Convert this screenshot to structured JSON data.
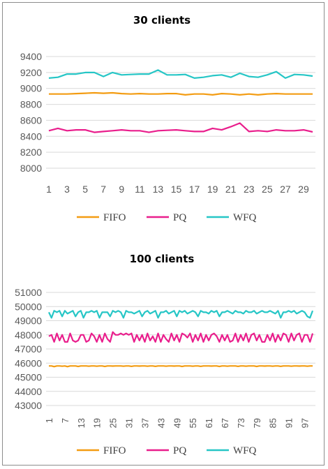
{
  "chart_data": [
    {
      "type": "line",
      "title": "30 clients",
      "ylim": [
        8000,
        9400
      ],
      "yticks": [
        "9400",
        "9200",
        "9000",
        "8800",
        "8600",
        "8400",
        "8200",
        "8000"
      ],
      "x": [
        1,
        2,
        3,
        4,
        5,
        6,
        7,
        8,
        9,
        10,
        11,
        12,
        13,
        14,
        15,
        16,
        17,
        18,
        19,
        20,
        21,
        22,
        23,
        24,
        25,
        26,
        27,
        28,
        29,
        30
      ],
      "xtick_labels": [
        "1",
        "3",
        "5",
        "7",
        "9",
        "11",
        "13",
        "15",
        "17",
        "19",
        "21",
        "23",
        "25",
        "27",
        "29"
      ],
      "grid": true,
      "legend": "bottom",
      "series": [
        {
          "name": "FIFO",
          "color": "#f39c12",
          "values": [
            8930,
            8930,
            8930,
            8935,
            8940,
            8945,
            8940,
            8945,
            8935,
            8930,
            8935,
            8930,
            8930,
            8935,
            8935,
            8920,
            8930,
            8930,
            8920,
            8935,
            8930,
            8920,
            8930,
            8920,
            8930,
            8935,
            8930,
            8930,
            8930,
            8930
          ]
        },
        {
          "name": "PQ",
          "color": "#e91e8c",
          "values": [
            8470,
            8500,
            8470,
            8480,
            8480,
            8450,
            8460,
            8470,
            8480,
            8470,
            8470,
            8450,
            8470,
            8475,
            8480,
            8470,
            8460,
            8460,
            8500,
            8480,
            8520,
            8565,
            8460,
            8470,
            8460,
            8480,
            8470,
            8470,
            8480,
            8455
          ]
        },
        {
          "name": "WFQ",
          "color": "#26c6c6",
          "values": [
            9130,
            9140,
            9180,
            9180,
            9200,
            9200,
            9150,
            9200,
            9170,
            9175,
            9180,
            9180,
            9230,
            9170,
            9170,
            9175,
            9130,
            9140,
            9160,
            9170,
            9140,
            9190,
            9150,
            9140,
            9170,
            9210,
            9130,
            9175,
            9170,
            9155
          ]
        }
      ]
    },
    {
      "type": "line",
      "title": "100 clients",
      "ylim": [
        43000,
        51000
      ],
      "yticks": [
        "51000",
        "50000",
        "49000",
        "48000",
        "47000",
        "46000",
        "45000",
        "44000",
        "43000"
      ],
      "xtick_labels": [
        "1",
        "7",
        "13",
        "19",
        "25",
        "31",
        "37",
        "43",
        "49",
        "55",
        "61",
        "67",
        "73",
        "79",
        "85",
        "91",
        "97"
      ],
      "grid": true,
      "legend": "bottom",
      "series": [
        {
          "name": "FIFO",
          "color": "#f39c12",
          "values": [
            45800,
            45800,
            45750,
            45800,
            45800,
            45780,
            45800,
            45750,
            45800,
            45800,
            45800,
            45760,
            45800,
            45800,
            45800,
            45780,
            45800,
            45800,
            45780,
            45800,
            45800,
            45760,
            45800,
            45800,
            45790,
            45800,
            45800,
            45800,
            45780,
            45800,
            45800,
            45770,
            45800,
            45800,
            45790,
            45800,
            45800,
            45780,
            45800,
            45800,
            45770,
            45800,
            45800,
            45800,
            45780,
            45800,
            45800,
            45790,
            45800,
            45800,
            45760,
            45800,
            45800,
            45800,
            45780,
            45800,
            45800,
            45770,
            45800,
            45800,
            45800,
            45790,
            45800,
            45800,
            45760,
            45800,
            45800,
            45780,
            45800,
            45800,
            45800,
            45770,
            45800,
            45800,
            45780,
            45800,
            45800,
            45800,
            45760,
            45800,
            45800,
            45790,
            45800,
            45800,
            45780,
            45800,
            45800,
            45770,
            45800,
            45800,
            45800,
            45780,
            45800,
            45800,
            45790,
            45800,
            45800,
            45780,
            45800,
            45800
          ]
        },
        {
          "name": "PQ",
          "color": "#e91e8c",
          "values": [
            47900,
            48000,
            47500,
            48100,
            47600,
            48000,
            47500,
            47500,
            48100,
            47600,
            47500,
            47600,
            48000,
            48000,
            47500,
            47600,
            48100,
            47900,
            47500,
            48000,
            47500,
            48100,
            47700,
            47500,
            48200,
            48000,
            48000,
            48100,
            48000,
            48100,
            48000,
            48100,
            47500,
            48000,
            47600,
            48000,
            47500,
            48100,
            47600,
            47900,
            47500,
            48100,
            47500,
            48000,
            47700,
            47500,
            48100,
            47600,
            48000,
            47500,
            48100,
            48000,
            47800,
            48100,
            47500,
            48000,
            47600,
            48100,
            47500,
            48000,
            47600,
            48000,
            48100,
            47900,
            47500,
            48000,
            47600,
            48000,
            47500,
            47600,
            48100,
            47500,
            48000,
            47600,
            48100,
            47500,
            48000,
            48100,
            47600,
            48000,
            47500,
            47500,
            48000,
            47600,
            48100,
            47500,
            48000,
            47600,
            48100,
            48000,
            47500,
            48100,
            47600,
            48000,
            48100,
            47500,
            48000,
            48000,
            47500,
            48100
          ]
        },
        {
          "name": "WFQ",
          "color": "#26c6c6",
          "values": [
            49600,
            49200,
            49700,
            49600,
            49700,
            49300,
            49700,
            49500,
            49600,
            49700,
            49300,
            49600,
            49700,
            49200,
            49600,
            49600,
            49700,
            49600,
            49700,
            49200,
            49600,
            49600,
            49600,
            49300,
            49700,
            49600,
            49700,
            49600,
            49200,
            49700,
            49600,
            49600,
            49500,
            49600,
            49700,
            49300,
            49600,
            49700,
            49500,
            49600,
            49700,
            49200,
            49600,
            49600,
            49700,
            49500,
            49600,
            49700,
            49300,
            49700,
            49600,
            49700,
            49500,
            49600,
            49700,
            49600,
            49300,
            49700,
            49600,
            49600,
            49500,
            49700,
            49600,
            49700,
            49300,
            49600,
            49600,
            49700,
            49600,
            49500,
            49700,
            49600,
            49600,
            49500,
            49700,
            49600,
            49600,
            49700,
            49500,
            49600,
            49700,
            49600,
            49600,
            49700,
            49600,
            49500,
            49700,
            49200,
            49600,
            49600,
            49700,
            49600,
            49700,
            49500,
            49600,
            49700,
            49600,
            49300,
            49200,
            49700
          ]
        }
      ]
    }
  ]
}
